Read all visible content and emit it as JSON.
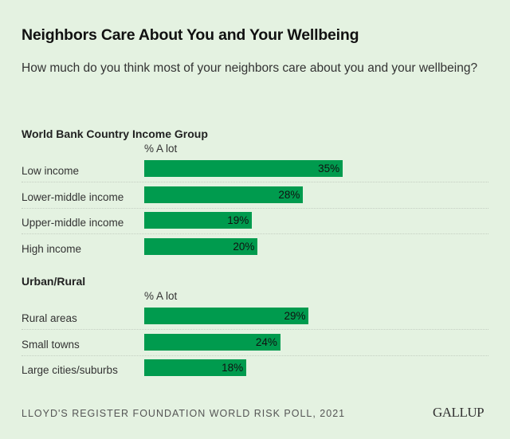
{
  "title": "Neighbors Care About You and Your Wellbeing",
  "subtitle": "How much do you think most of your neighbors care about you and your wellbeing?",
  "colors": {
    "background": "#e4f2e1",
    "bar": "#009b4e"
  },
  "chart_data": [
    {
      "type": "bar",
      "orientation": "horizontal",
      "title": "World Bank Country Income Group",
      "column_header": "% A lot",
      "categories": [
        "Low income",
        "Lower-middle income",
        "Upper-middle income",
        "High income"
      ],
      "values": [
        35,
        28,
        19,
        20
      ],
      "value_labels": [
        "35%",
        "28%",
        "19%",
        "20%"
      ],
      "unit": "%"
    },
    {
      "type": "bar",
      "orientation": "horizontal",
      "title": "Urban/Rural",
      "column_header": "% A lot",
      "categories": [
        "Rural areas",
        "Small towns",
        "Large cities/suburbs"
      ],
      "values": [
        29,
        24,
        18
      ],
      "value_labels": [
        "29%",
        "24%",
        "18%"
      ],
      "unit": "%"
    }
  ],
  "footer": {
    "source": "LLOYD'S REGISTER FOUNDATION WORLD RISK POLL, 2021",
    "logo": "GALLUP"
  }
}
